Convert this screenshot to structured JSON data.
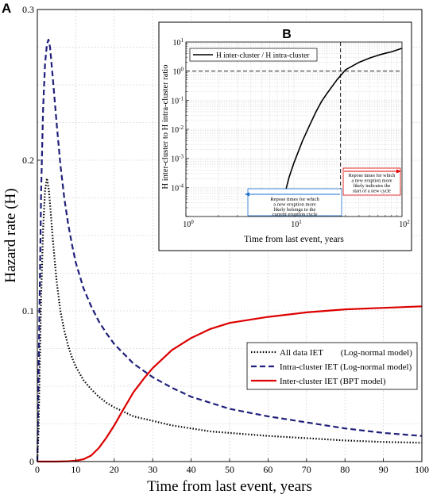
{
  "chart_data": [
    {
      "panel": "A",
      "type": "line",
      "xlabel": "Time from last event, years",
      "ylabel": "Hazard rate (H)",
      "xlim": [
        0,
        100
      ],
      "ylim": [
        0,
        0.3
      ],
      "x_ticks": [
        "0",
        "10",
        "20",
        "30",
        "40",
        "50",
        "60",
        "70",
        "80",
        "90",
        "100"
      ],
      "y_ticks": [
        "0",
        "0.1",
        "0.2",
        "0.3"
      ],
      "grid": true,
      "legend_position": "bottom-right",
      "series": [
        {
          "name": "All data IET        (Log-normal model)",
          "color": "#000000",
          "style": "dotted",
          "x": [
            0,
            0.3,
            0.6,
            1,
            1.5,
            2,
            2.5,
            3,
            3.5,
            4,
            5,
            6,
            7,
            8,
            9,
            10,
            12,
            14,
            16,
            18,
            20,
            25,
            30,
            35,
            40,
            45,
            50,
            60,
            70,
            80,
            90,
            100
          ],
          "y": [
            0,
            0.02,
            0.06,
            0.11,
            0.155,
            0.18,
            0.188,
            0.18,
            0.165,
            0.148,
            0.12,
            0.1,
            0.087,
            0.077,
            0.069,
            0.063,
            0.054,
            0.048,
            0.043,
            0.039,
            0.036,
            0.03,
            0.027,
            0.024,
            0.022,
            0.02,
            0.019,
            0.017,
            0.0155,
            0.014,
            0.013,
            0.0125
          ]
        },
        {
          "name": "Intra-cluster IET (Log-normal model)",
          "color": "#1f1f7a",
          "style": "dashed",
          "x": [
            0,
            0.5,
            1,
            1.5,
            2,
            2.5,
            2.9,
            3.3,
            4,
            5,
            6,
            7,
            8,
            9,
            10,
            12,
            14,
            16,
            18,
            20,
            25,
            30,
            35,
            40,
            50,
            60,
            70,
            80,
            90,
            100
          ],
          "y": [
            0,
            0.09,
            0.18,
            0.235,
            0.264,
            0.277,
            0.28,
            0.275,
            0.255,
            0.225,
            0.197,
            0.175,
            0.158,
            0.144,
            0.132,
            0.115,
            0.103,
            0.093,
            0.085,
            0.078,
            0.065,
            0.056,
            0.049,
            0.043,
            0.035,
            0.03,
            0.026,
            0.022,
            0.019,
            0.017
          ]
        },
        {
          "name": "Inter-cluster IET (BPT model)",
          "color": "#dd0000",
          "style": "solid",
          "x": [
            0,
            5,
            8,
            10,
            12,
            14,
            16,
            18,
            20,
            22,
            25,
            28,
            30,
            35,
            40,
            45,
            50,
            60,
            70,
            80,
            90,
            100
          ],
          "y": [
            0,
            0,
            0.0002,
            0.0006,
            0.0015,
            0.004,
            0.009,
            0.016,
            0.024,
            0.033,
            0.046,
            0.056,
            0.062,
            0.074,
            0.082,
            0.088,
            0.092,
            0.096,
            0.099,
            0.101,
            0.102,
            0.103
          ]
        }
      ]
    },
    {
      "panel": "B",
      "type": "line",
      "xlabel": "Time from last event, years",
      "ylabel": "H inter-cluster to H intra-cluster ratio",
      "xscale": "log",
      "yscale": "log",
      "xlim": [
        1,
        100
      ],
      "ylim": [
        1e-05,
        10
      ],
      "x_ticks": [
        "10^0",
        "10^1",
        "10^2"
      ],
      "y_ticks": [
        "10^-4",
        "10^-3",
        "10^-2",
        "10^-1",
        "10^0",
        "10^1"
      ],
      "grid": true,
      "legend_position": "top-left",
      "reference_lines": {
        "x": 27,
        "y": 1
      },
      "series": [
        {
          "name": "H inter-cluster / H intra-cluster",
          "color": "#000000",
          "style": "solid",
          "x": [
            7.4,
            8,
            9,
            10,
            12,
            14,
            16,
            18,
            20,
            25,
            30,
            40,
            50,
            60,
            70,
            80,
            100
          ],
          "y": [
            1e-05,
            4e-05,
            0.00022,
            0.0007,
            0.004,
            0.014,
            0.04,
            0.09,
            0.16,
            0.5,
            1.1,
            2.0,
            2.8,
            3.5,
            4.1,
            4.6,
            6.1
          ]
        }
      ],
      "annotations": [
        {
          "id": "left",
          "color": "#1a6fd0",
          "lines": [
            "Repose times for which",
            "a new eruption more",
            "likely belongs to the",
            "current eruption cycle"
          ]
        },
        {
          "id": "right",
          "color": "#dd0000",
          "lines": [
            "Repose times for which",
            "a new eruption more",
            "likely indicates the",
            "start of a new cycle"
          ]
        }
      ]
    }
  ]
}
